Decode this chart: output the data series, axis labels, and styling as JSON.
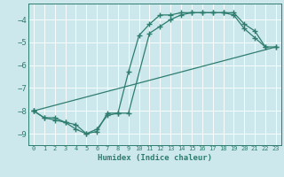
{
  "xlabel": "Humidex (Indice chaleur)",
  "bg_color": "#cce8ec",
  "grid_color": "#ffffff",
  "line_color": "#2e7d6e",
  "xlim": [
    -0.5,
    23.5
  ],
  "ylim": [
    -9.5,
    -3.3
  ],
  "xticks": [
    0,
    1,
    2,
    3,
    4,
    5,
    6,
    7,
    8,
    9,
    10,
    11,
    12,
    13,
    14,
    15,
    16,
    17,
    18,
    19,
    20,
    21,
    22,
    23
  ],
  "yticks": [
    -9,
    -8,
    -7,
    -6,
    -5,
    -4
  ],
  "line1_x": [
    0,
    1,
    2,
    3,
    4,
    5,
    6,
    7,
    8,
    9,
    10,
    11,
    12,
    13,
    14,
    15,
    16,
    17,
    18,
    19,
    20,
    21,
    22
  ],
  "line1_y": [
    -8.0,
    -8.3,
    -8.4,
    -8.5,
    -8.6,
    -9.0,
    -8.9,
    -8.1,
    -8.1,
    -6.3,
    -4.7,
    -4.2,
    -3.8,
    -3.8,
    -3.7,
    -3.7,
    -3.7,
    -3.7,
    -3.7,
    -3.7,
    -4.2,
    -4.5,
    -5.2
  ],
  "line2_x": [
    0,
    1,
    2,
    3,
    4,
    5,
    6,
    7,
    8,
    9,
    11,
    12,
    13,
    14,
    15,
    16,
    17,
    18,
    19,
    20,
    21,
    22,
    23
  ],
  "line2_y": [
    -8.0,
    -8.3,
    -8.3,
    -8.5,
    -8.8,
    -9.0,
    -8.8,
    -8.2,
    -8.1,
    -8.1,
    -4.6,
    -4.3,
    -4.0,
    -3.8,
    -3.7,
    -3.7,
    -3.7,
    -3.7,
    -3.8,
    -4.4,
    -4.8,
    -5.2,
    -5.2
  ],
  "line3_x": [
    0,
    23
  ],
  "line3_y": [
    -8.0,
    -5.2
  ]
}
